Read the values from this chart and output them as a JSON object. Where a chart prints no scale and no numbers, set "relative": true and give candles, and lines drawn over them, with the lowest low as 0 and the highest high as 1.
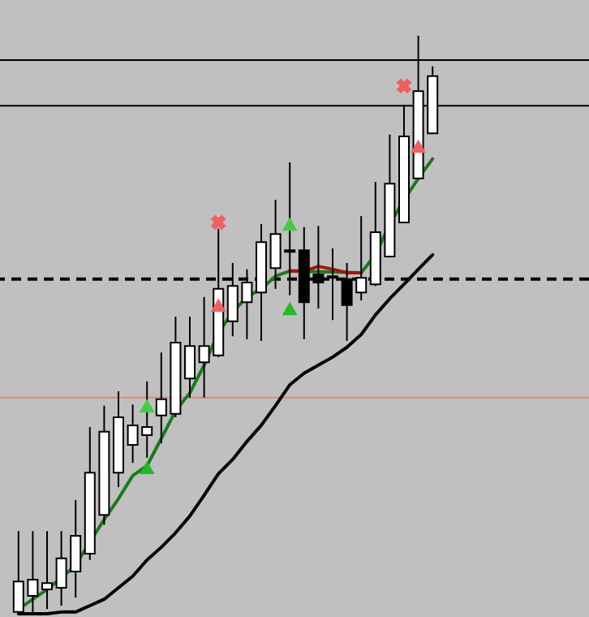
{
  "chart_data": {
    "type": "candlestick",
    "relative": true,
    "categories": [
      null,
      null,
      null,
      null,
      null,
      null,
      null,
      null,
      null,
      null,
      null,
      null,
      null,
      null,
      null,
      null,
      null,
      null,
      null,
      null,
      null,
      null,
      null,
      null,
      null,
      null,
      null,
      null,
      null,
      null
    ],
    "ohlc": [
      [
        0.003,
        0.143,
        0,
        0.056
      ],
      [
        0.031,
        0.143,
        0.003,
        0.059
      ],
      [
        0.042,
        0.143,
        0.008,
        0.053
      ],
      [
        0.045,
        0.143,
        0.014,
        0.096
      ],
      [
        0.073,
        0.197,
        0.028,
        0.135
      ],
      [
        0.104,
        0.323,
        0.093,
        0.244
      ],
      [
        0.171,
        0.36,
        0.154,
        0.315
      ],
      [
        0.244,
        0.385,
        0.219,
        0.34
      ],
      [
        0.292,
        0.362,
        0.261,
        0.326
      ],
      [
        0.309,
        0.402,
        0.27,
        0.323
      ],
      [
        0.343,
        0.452,
        0.295,
        0.371
      ],
      [
        0.346,
        0.514,
        0.34,
        0.469
      ],
      [
        0.407,
        0.514,
        0.374,
        0.463
      ],
      [
        0.435,
        0.548,
        0.374,
        0.463
      ],
      [
        0.447,
        0.666,
        0.444,
        0.562
      ],
      [
        0.506,
        0.607,
        0.48,
        0.567
      ],
      [
        0.539,
        0.596,
        0.475,
        0.573
      ],
      [
        0.556,
        0.674,
        0.472,
        0.643
      ],
      [
        0.598,
        0.716,
        0.562,
        0.657
      ],
      [
        0.629,
        0.781,
        0.551,
        0.626
      ],
      [
        0.629,
        0.669,
        0.475,
        0.539
      ],
      [
        0.587,
        0.671,
        0.528,
        0.573
      ],
      [
        0.584,
        0.632,
        0.508,
        0.581
      ],
      [
        0.579,
        0.607,
        0.472,
        0.534
      ],
      [
        0.556,
        0.688,
        0.542,
        0.581
      ],
      [
        0.57,
        0.747,
        0.567,
        0.66
      ],
      [
        0.618,
        0.829,
        0.618,
        0.744
      ],
      [
        0.677,
        0.879,
        0.677,
        0.826
      ],
      [
        0.753,
        1,
        0.753,
        0.904
      ],
      [
        0.831,
        0.947,
        0.831,
        0.93
      ]
    ],
    "series": [
      {
        "type": "line",
        "color": "#1a7a1a",
        "values": [
          0.008,
          0.025,
          0.042,
          0.062,
          0.084,
          0.124,
          0.163,
          0.199,
          0.239,
          0.256,
          0.303,
          0.351,
          0.382,
          0.43,
          0.486,
          0.522,
          0.548,
          0.562,
          0.584,
          0.593,
          null,
          null,
          null,
          null,
          0.59,
          0.621,
          0.674,
          0.716,
          0.753,
          0.787
        ]
      },
      {
        "type": "line",
        "color": "#b01010",
        "values": [
          null,
          null,
          null,
          null,
          null,
          null,
          null,
          null,
          null,
          null,
          null,
          null,
          null,
          null,
          null,
          null,
          null,
          null,
          null,
          0.593,
          0.593,
          0.601,
          0.596,
          0.59,
          0.59,
          null,
          null,
          null,
          null,
          null
        ]
      },
      {
        "type": "line",
        "color": "#000000",
        "values": [
          0,
          0,
          0,
          0.003,
          0.003,
          0.014,
          0.025,
          0.045,
          0.065,
          0.093,
          0.115,
          0.14,
          0.169,
          0.205,
          0.242,
          0.267,
          0.298,
          0.326,
          0.36,
          0.396,
          0.416,
          0.43,
          0.444,
          0.461,
          0.483,
          0.517,
          0.545,
          0.57,
          0.596,
          0.621
        ]
      },
      {
        "type": "scatter",
        "marker": "cross",
        "color": "#f06060",
        "values": [
          null,
          null,
          null,
          null,
          null,
          null,
          null,
          null,
          null,
          null,
          null,
          null,
          null,
          null,
          0.677,
          null,
          null,
          null,
          null,
          null,
          null,
          null,
          null,
          null,
          null,
          null,
          null,
          0.913,
          null,
          null
        ]
      },
      {
        "type": "scatter",
        "marker": "triangle",
        "color": "#22bb22",
        "values": [
          null,
          null,
          null,
          null,
          null,
          null,
          null,
          null,
          null,
          0.253,
          null,
          null,
          null,
          null,
          null,
          null,
          null,
          null,
          null,
          0.528,
          null,
          null,
          null,
          null,
          null,
          null,
          null,
          null,
          null,
          null
        ]
      },
      {
        "type": "scatter",
        "marker": "triangle",
        "color": "#44cc44",
        "values": [
          null,
          null,
          null,
          null,
          null,
          null,
          null,
          null,
          null,
          0.36,
          null,
          null,
          null,
          null,
          null,
          null,
          null,
          null,
          null,
          0.674,
          null,
          null,
          null,
          null,
          null,
          null,
          null,
          null,
          null,
          null
        ]
      },
      {
        "type": "scatter",
        "marker": "triangle",
        "color": "#f06060",
        "values": [
          null,
          null,
          null,
          null,
          null,
          null,
          null,
          null,
          null,
          null,
          null,
          null,
          null,
          null,
          0.534,
          null,
          null,
          null,
          null,
          null,
          null,
          null,
          null,
          null,
          null,
          null,
          null,
          null,
          0.809,
          null
        ]
      }
    ],
    "ref_lines": [
      {
        "axis": "y",
        "value": 0.958,
        "color": "#000000"
      },
      {
        "axis": "y",
        "value": 0.879,
        "color": "#000000"
      },
      {
        "axis": "y",
        "value": 0.579,
        "color": "#000000",
        "line_style": "dashed"
      },
      {
        "axis": "y",
        "value": 0.374,
        "color": "#f08080"
      }
    ]
  }
}
